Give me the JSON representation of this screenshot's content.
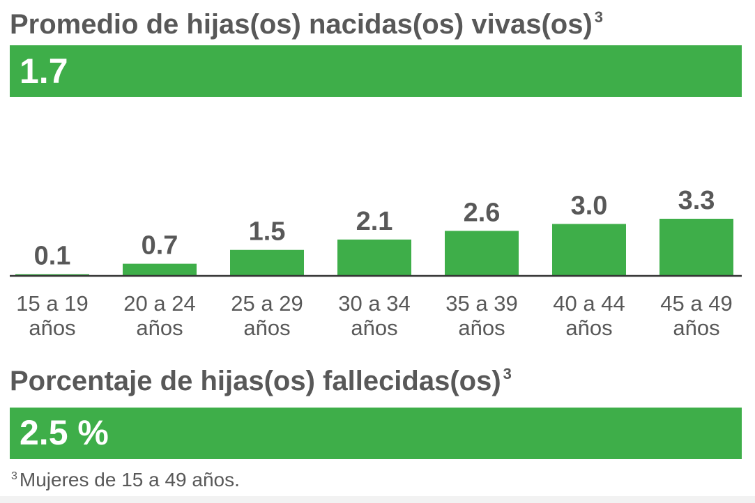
{
  "section1": {
    "title": "Promedio de hijas(os) nacidas(os) vivas(os)",
    "title_sup": "3",
    "average_value": "1.7"
  },
  "section2": {
    "title": "Porcentaje de hijas(os) fallecidas(os)",
    "title_sup": "3",
    "percent_value": "2.5 %"
  },
  "footnote": {
    "sup": "3",
    "text": "Mujeres de 15 a 49 años."
  },
  "colors": {
    "accent": "#3eae49",
    "text": "#585858",
    "axis": "#333333"
  },
  "chart_data": {
    "type": "bar",
    "categories": [
      "15 a 19 años",
      "20 a 24 años",
      "25 a 29 años",
      "30 a 34 años",
      "35 a 39 años",
      "40 a 44 años",
      "45 a 49 años"
    ],
    "category_lines": [
      [
        "15 a 19",
        "años"
      ],
      [
        "20 a 24",
        "años"
      ],
      [
        "25 a 29",
        "años"
      ],
      [
        "30 a 34",
        "años"
      ],
      [
        "35 a 39",
        "años"
      ],
      [
        "40 a 44",
        "años"
      ],
      [
        "45 a 49",
        "años"
      ]
    ],
    "values": [
      0.1,
      0.7,
      1.5,
      2.1,
      2.6,
      3.0,
      3.3
    ],
    "value_labels": [
      "0.1",
      "0.7",
      "1.5",
      "2.1",
      "2.6",
      "3.0",
      "3.3"
    ],
    "ylim": [
      0,
      3.3
    ],
    "grid": false,
    "legend": "none"
  }
}
